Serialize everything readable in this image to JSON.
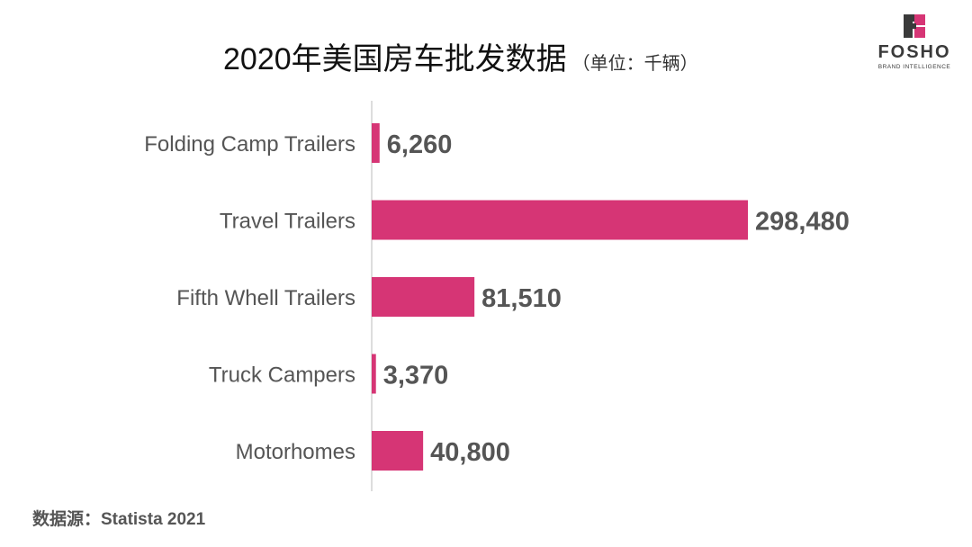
{
  "title": "2020年美国房车批发数据",
  "unit": "（单位：千辆）",
  "source": "数据源：Statista 2021",
  "logo": {
    "text": "FOSHO",
    "subtext": "BRAND INTELLIGENCE"
  },
  "colors": {
    "bar": "#d63575",
    "logo_pink": "#d63575",
    "logo_dark": "#3a3a3a"
  },
  "chart_data": {
    "type": "bar",
    "orientation": "horizontal",
    "categories": [
      "Folding Camp Trailers",
      "Travel Trailers",
      "Fifth Whell Trailers",
      "Truck Campers",
      "Motorhomes"
    ],
    "values": [
      6260,
      298480,
      81510,
      3370,
      40800
    ],
    "value_labels": [
      "6,260",
      "298,480",
      "81,510",
      "3,370",
      "40,800"
    ],
    "xlim": [
      0,
      298480
    ],
    "grid": false,
    "legend": "none"
  }
}
